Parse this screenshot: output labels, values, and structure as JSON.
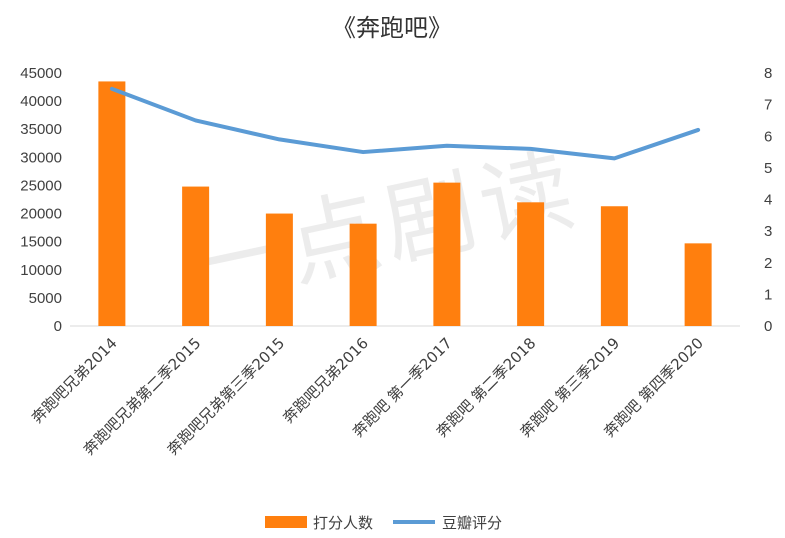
{
  "chart_data": {
    "type": "bar",
    "title": "《奔跑吧》",
    "watermark": "一点剧读",
    "categories": [
      "奔跑吧兄弟2014",
      "奔跑吧兄弟第二季2015",
      "奔跑吧兄弟第三季2015",
      "奔跑吧兄弟2016",
      "奔跑吧 第一季2017",
      "奔跑吧 第二季2018",
      "奔跑吧 第三季2019",
      "奔跑吧 第四季2020"
    ],
    "series": [
      {
        "name": "打分人数",
        "type": "bar",
        "axis": "left",
        "color": "#FF7F0E",
        "values": [
          43500,
          24800,
          20000,
          18200,
          25500,
          22000,
          21300,
          14700
        ]
      },
      {
        "name": "豆瓣评分",
        "type": "line",
        "axis": "right",
        "color": "#5B9BD5",
        "values": [
          7.5,
          6.5,
          5.9,
          5.5,
          5.7,
          5.6,
          5.3,
          6.2
        ]
      }
    ],
    "y_left": {
      "min": 0,
      "max": 45000,
      "step": 5000
    },
    "y_right": {
      "min": 0,
      "max": 8,
      "step": 1
    },
    "grid": false,
    "legend_position": "bottom"
  }
}
